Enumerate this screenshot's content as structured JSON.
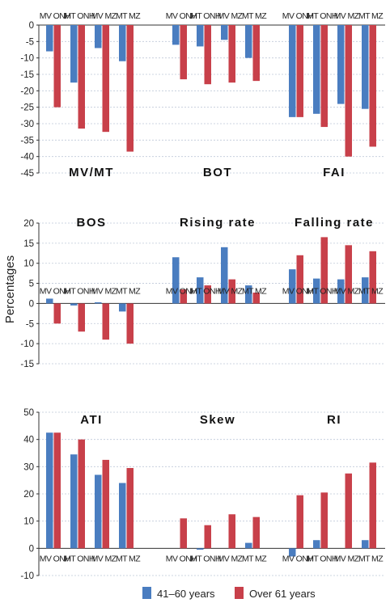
{
  "colors": {
    "blue": "#4a7dc0",
    "red": "#c8404a",
    "grid": "#bfc8d8",
    "axis": "#333333"
  },
  "y_axis_label": "Percentages",
  "legend": [
    {
      "name": "41–60 years",
      "color": "#4a7dc0"
    },
    {
      "name": "Over 61 years",
      "color": "#c8404a"
    }
  ],
  "chart_data": [
    {
      "type": "bar",
      "ylim": [
        -45,
        0
      ],
      "yticks": [
        "0",
        "-5",
        "-10",
        "-15",
        "-20",
        "-25",
        "-30",
        "-35",
        "-40",
        "-45"
      ],
      "title_position": "bottom",
      "groups": [
        {
          "title": "MV/MT",
          "categories": [
            "MV ONH",
            "MT ONH",
            "MV MZ",
            "MT MZ"
          ],
          "series": [
            {
              "name": "41–60 years",
              "values": [
                -8,
                -17.5,
                -7,
                -11
              ]
            },
            {
              "name": "Over 61 years",
              "values": [
                -25,
                -31.5,
                -32.5,
                -38.5
              ]
            }
          ]
        },
        {
          "title": "BOT",
          "categories": [
            "MV ONH",
            "MT ONH",
            "MV MZ",
            "MT MZ"
          ],
          "series": [
            {
              "name": "41–60 years",
              "values": [
                -6,
                -6.5,
                -4.5,
                -10
              ]
            },
            {
              "name": "Over 61 years",
              "values": [
                -16.5,
                -18,
                -17.5,
                -17
              ]
            }
          ]
        },
        {
          "title": "FAI",
          "categories": [
            "MV ONH",
            "MT ONH",
            "MV MZ",
            "MT MZ"
          ],
          "series": [
            {
              "name": "41–60 years",
              "values": [
                -28,
                -27,
                -24,
                -25.5
              ]
            },
            {
              "name": "Over 61 years",
              "values": [
                -28,
                -31,
                -40,
                -37
              ]
            }
          ]
        }
      ]
    },
    {
      "type": "bar",
      "ylim": [
        -15,
        20
      ],
      "yticks": [
        "20",
        "15",
        "10",
        "5",
        "0",
        "-5",
        "-10",
        "-15"
      ],
      "title_position": "top",
      "groups": [
        {
          "title": "BOS",
          "categories": [
            "MV ONH",
            "MT ONH",
            "MV MZ",
            "MT MZ"
          ],
          "series": [
            {
              "name": "41–60 years",
              "values": [
                1.2,
                -0.5,
                0.3,
                -2
              ]
            },
            {
              "name": "Over 61 years",
              "values": [
                -5,
                -7,
                -9,
                -10
              ]
            }
          ]
        },
        {
          "title": "Rising rate",
          "categories": [
            "MV ONH",
            "MT ONH",
            "MV MZ",
            "MT MZ"
          ],
          "series": [
            {
              "name": "41–60 years",
              "values": [
                11.5,
                6.5,
                14,
                4.5
              ]
            },
            {
              "name": "Over 61 years",
              "values": [
                3.5,
                4.5,
                6,
                2.7
              ]
            }
          ]
        },
        {
          "title": "Falling rate",
          "categories": [
            "MV ONH",
            "MT ONH",
            "MV MZ",
            "MT MZ"
          ],
          "series": [
            {
              "name": "41–60 years",
              "values": [
                8.5,
                6.2,
                6,
                6.5
              ]
            },
            {
              "name": "Over 61 years",
              "values": [
                12,
                16.5,
                14.5,
                13
              ]
            }
          ]
        }
      ]
    },
    {
      "type": "bar",
      "ylim": [
        -10,
        50
      ],
      "yticks": [
        "50",
        "40",
        "30",
        "20",
        "10",
        "0",
        "-10"
      ],
      "title_position": "top",
      "groups": [
        {
          "title": "ATI",
          "categories": [
            "MV ONH",
            "MT ONH",
            "MV MZ",
            "MT MZ"
          ],
          "series": [
            {
              "name": "41–60 years",
              "values": [
                42.5,
                34.5,
                27,
                24
              ]
            },
            {
              "name": "Over 61 years",
              "values": [
                42.5,
                40,
                32.5,
                29.5
              ]
            }
          ]
        },
        {
          "title": "Skew",
          "categories": [
            "MV ONH",
            "MT ONH",
            "MV MZ",
            "MT MZ"
          ],
          "series": [
            {
              "name": "41–60 years",
              "values": [
                0,
                -0.5,
                0,
                2
              ]
            },
            {
              "name": "Over 61 years",
              "values": [
                11,
                8.5,
                12.5,
                11.5
              ]
            }
          ]
        },
        {
          "title": "RI",
          "categories": [
            "MV ONH",
            "MT ONH",
            "MV MZ",
            "MT MZ"
          ],
          "series": [
            {
              "name": "41–60 years",
              "values": [
                -3,
                3,
                0,
                3
              ]
            },
            {
              "name": "Over 61 years",
              "values": [
                19.5,
                20.5,
                27.5,
                31.5
              ]
            }
          ]
        }
      ]
    }
  ]
}
